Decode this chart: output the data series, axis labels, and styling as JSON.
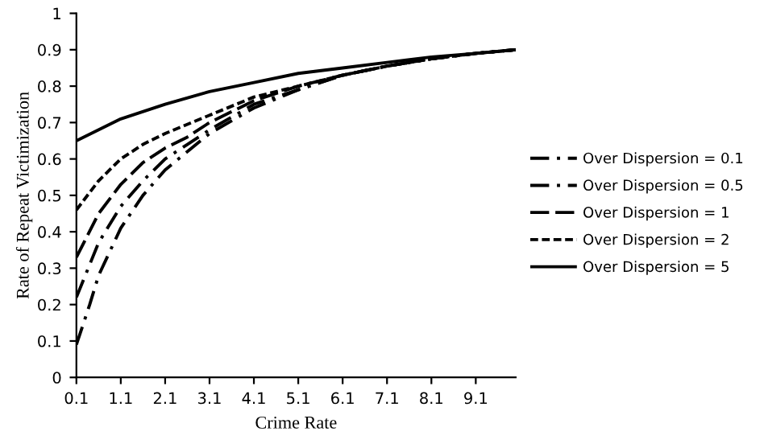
{
  "chart_data": {
    "type": "line",
    "xlabel": "Crime Rate",
    "ylabel": "Rate of Repeat Victimization",
    "xlim": [
      0.1,
      10.0
    ],
    "xticks": [
      0.1,
      1.1,
      2.1,
      3.1,
      4.1,
      5.1,
      6.1,
      7.1,
      8.1,
      9.1
    ],
    "ylim": [
      0,
      1
    ],
    "yticks": [
      0,
      0.1,
      0.2,
      0.3,
      0.4,
      0.5,
      0.6,
      0.7,
      0.8,
      0.9,
      1
    ],
    "grid": false,
    "legend": "right",
    "marker": "none",
    "series": [
      {
        "name": "Over Dispersion = 0.1",
        "color": "#000000",
        "line_style": "dashdot",
        "x": [
          0.1,
          0.4,
          0.6,
          1.1,
          1.6,
          2.1,
          2.6,
          3.1,
          4.1,
          5.1,
          6.1,
          7.1,
          8.1,
          9.1,
          10.0
        ],
        "values": [
          0.09,
          0.2,
          0.28,
          0.41,
          0.5,
          0.57,
          0.62,
          0.67,
          0.74,
          0.79,
          0.83,
          0.855,
          0.875,
          0.89,
          0.9
        ]
      },
      {
        "name": "Over Dispersion = 0.5",
        "color": "#000000",
        "line_style": "dashdot",
        "x": [
          0.1,
          0.6,
          1.1,
          1.6,
          2.1,
          2.6,
          3.1,
          4.1,
          5.1,
          6.1,
          7.1,
          8.1,
          9.1,
          10.0
        ],
        "values": [
          0.22,
          0.37,
          0.47,
          0.54,
          0.6,
          0.64,
          0.68,
          0.75,
          0.79,
          0.83,
          0.855,
          0.875,
          0.89,
          0.9
        ]
      },
      {
        "name": "Over Dispersion = 1",
        "color": "#000000",
        "line_style": "longdash",
        "x": [
          0.1,
          0.6,
          1.1,
          1.6,
          2.1,
          2.6,
          3.1,
          4.1,
          5.1,
          6.1,
          7.1,
          8.1,
          9.1,
          10.0
        ],
        "values": [
          0.33,
          0.45,
          0.53,
          0.59,
          0.63,
          0.66,
          0.7,
          0.76,
          0.8,
          0.83,
          0.855,
          0.875,
          0.89,
          0.9
        ]
      },
      {
        "name": "Over Dispersion = 2",
        "color": "#000000",
        "line_style": "dashed",
        "x": [
          0.1,
          0.6,
          1.1,
          1.6,
          2.1,
          3.1,
          4.1,
          5.1,
          6.1,
          7.1,
          8.1,
          9.1,
          10.0
        ],
        "values": [
          0.46,
          0.54,
          0.6,
          0.64,
          0.67,
          0.72,
          0.77,
          0.8,
          0.83,
          0.855,
          0.875,
          0.89,
          0.9
        ]
      },
      {
        "name": "Over Dispersion = 5",
        "color": "#000000",
        "line_style": "solid",
        "x": [
          0.1,
          1.1,
          2.1,
          3.1,
          4.1,
          5.1,
          6.1,
          7.1,
          8.1,
          9.1,
          10.0
        ],
        "values": [
          0.65,
          0.71,
          0.75,
          0.785,
          0.81,
          0.835,
          0.85,
          0.865,
          0.88,
          0.89,
          0.9
        ]
      }
    ]
  }
}
